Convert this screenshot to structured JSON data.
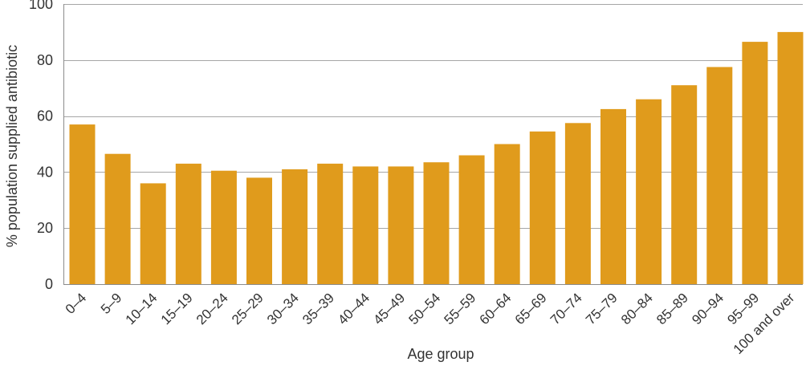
{
  "chart_data": {
    "type": "bar",
    "categories": [
      "0–4",
      "5–9",
      "10–14",
      "15–19",
      "20–24",
      "25–29",
      "30–34",
      "35–39",
      "40–44",
      "45–49",
      "50–54",
      "55–59",
      "60–64",
      "65–69",
      "70–74",
      "75–79",
      "80–84",
      "85–89",
      "90–94",
      "95–99",
      "100 and over"
    ],
    "values": [
      57,
      46.5,
      36,
      43,
      40.5,
      38,
      41,
      43,
      42,
      42,
      43.5,
      46,
      50,
      54.5,
      57.5,
      62.5,
      66,
      71,
      77.5,
      86.5,
      90
    ],
    "xlabel": "Age group",
    "ylabel": "% population supplied antibiotic",
    "ylim": [
      0,
      100
    ],
    "yticks": [
      0,
      20,
      40,
      60,
      80,
      100
    ],
    "grid": true,
    "bar_color": "#e09b1c"
  }
}
